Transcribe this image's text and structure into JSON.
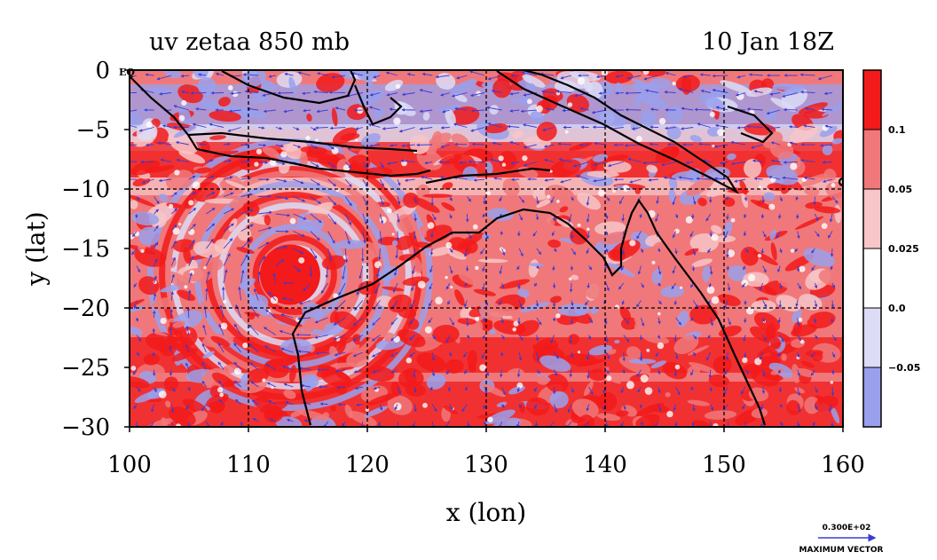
{
  "chart_data": {
    "type": "heatmap",
    "title": "uv zetaa 850 mb",
    "subtitle": "10 Jan 18Z",
    "xlabel": "x (lon)",
    "ylabel": "y (lat)",
    "xlim": [
      100,
      160
    ],
    "ylim": [
      -30,
      0
    ],
    "x_ticks": [
      100,
      110,
      120,
      130,
      140,
      150,
      160
    ],
    "x_tick_labels": [
      "100",
      "110",
      "120",
      "130",
      "140",
      "150",
      "160"
    ],
    "y_ticks": [
      0,
      -5,
      -10,
      -15,
      -20,
      -25,
      -30
    ],
    "y_tick_labels": [
      "0",
      "−5",
      "−10",
      "−15",
      "−20",
      "−25",
      "−30"
    ],
    "corner_label": "EQ",
    "grid": true,
    "grid_lon": [
      110,
      120,
      130,
      140,
      150
    ],
    "grid_lat": [
      -10,
      -20
    ],
    "colorbar": {
      "labels": [
        "0.1",
        "0.05",
        "0.025",
        "0.0",
        "−0.05"
      ],
      "levels": [
        0.1,
        0.05,
        0.025,
        0.0,
        -0.05
      ],
      "colors": [
        "#f21a1a",
        "#f0787a",
        "#f7c6c8",
        "#ffffff",
        "#dcdcf6",
        "#9aa0ec"
      ]
    },
    "vector_legend": {
      "magnitude_label": "0.300E+02",
      "caption": "MAXIMUM VECTOR",
      "color": "#3b3bd6"
    },
    "features": {
      "cyclone_center": {
        "lon": 113.5,
        "lat": -17.2
      }
    }
  }
}
